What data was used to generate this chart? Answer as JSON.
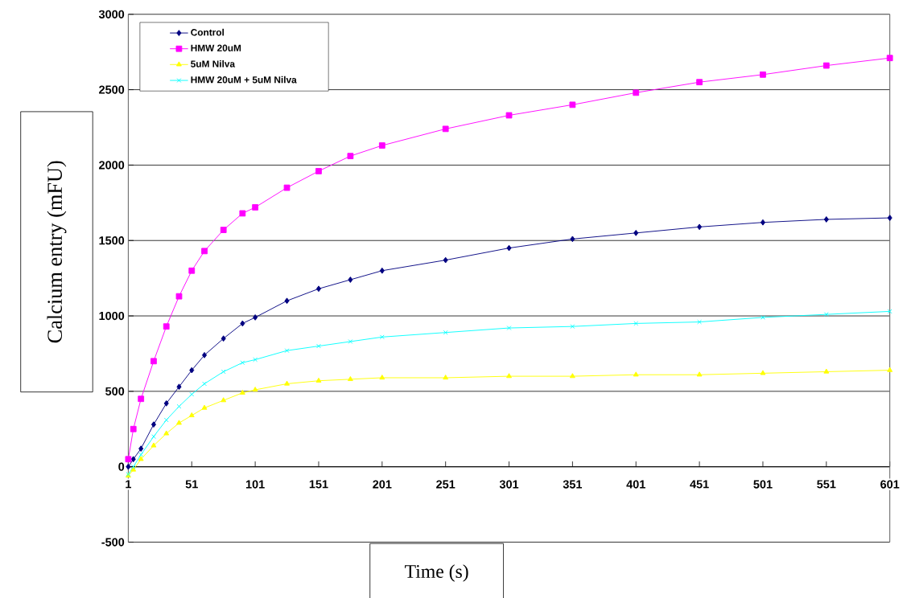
{
  "chart_data": {
    "type": "line",
    "xlabel": "Time (s)",
    "ylabel": "Calcium entry (mFU)",
    "x": [
      1,
      5,
      11,
      21,
      31,
      41,
      51,
      61,
      76,
      91,
      101,
      126,
      151,
      176,
      201,
      251,
      301,
      351,
      401,
      451,
      501,
      551,
      601
    ],
    "series": [
      {
        "name": "Control",
        "color": "#000080",
        "marker": "diamond",
        "values": [
          0,
          50,
          120,
          280,
          420,
          530,
          640,
          740,
          850,
          950,
          990,
          1100,
          1180,
          1240,
          1300,
          1370,
          1450,
          1510,
          1550,
          1590,
          1620,
          1640,
          1650
        ]
      },
      {
        "name": "HMW 20uM",
        "color": "#ff00ff",
        "marker": "square",
        "values": [
          50,
          250,
          450,
          700,
          930,
          1130,
          1300,
          1430,
          1570,
          1680,
          1720,
          1850,
          1960,
          2060,
          2130,
          2240,
          2330,
          2400,
          2480,
          2550,
          2600,
          2660,
          2710
        ]
      },
      {
        "name": "5uM Nilva",
        "color": "#ffff00",
        "marker": "triangle",
        "values": [
          -60,
          -20,
          50,
          140,
          220,
          290,
          340,
          390,
          440,
          490,
          510,
          550,
          570,
          580,
          590,
          590,
          600,
          600,
          610,
          610,
          620,
          630,
          640
        ]
      },
      {
        "name": "HMW 20uM + 5uM Nilva",
        "color": "#00ffff",
        "marker": "cross",
        "values": [
          -50,
          0,
          80,
          200,
          310,
          400,
          480,
          550,
          630,
          690,
          710,
          770,
          800,
          830,
          860,
          890,
          920,
          930,
          950,
          960,
          990,
          1010,
          1030
        ]
      }
    ],
    "xlim": [
      1,
      601
    ],
    "xticks": [
      1,
      51,
      101,
      151,
      201,
      251,
      301,
      351,
      401,
      451,
      501,
      551,
      601
    ],
    "ylim": [
      -500,
      3000
    ],
    "yticks": [
      -500,
      0,
      500,
      1000,
      1500,
      2000,
      2500,
      3000
    ],
    "grid": "y",
    "legend": "top left"
  }
}
